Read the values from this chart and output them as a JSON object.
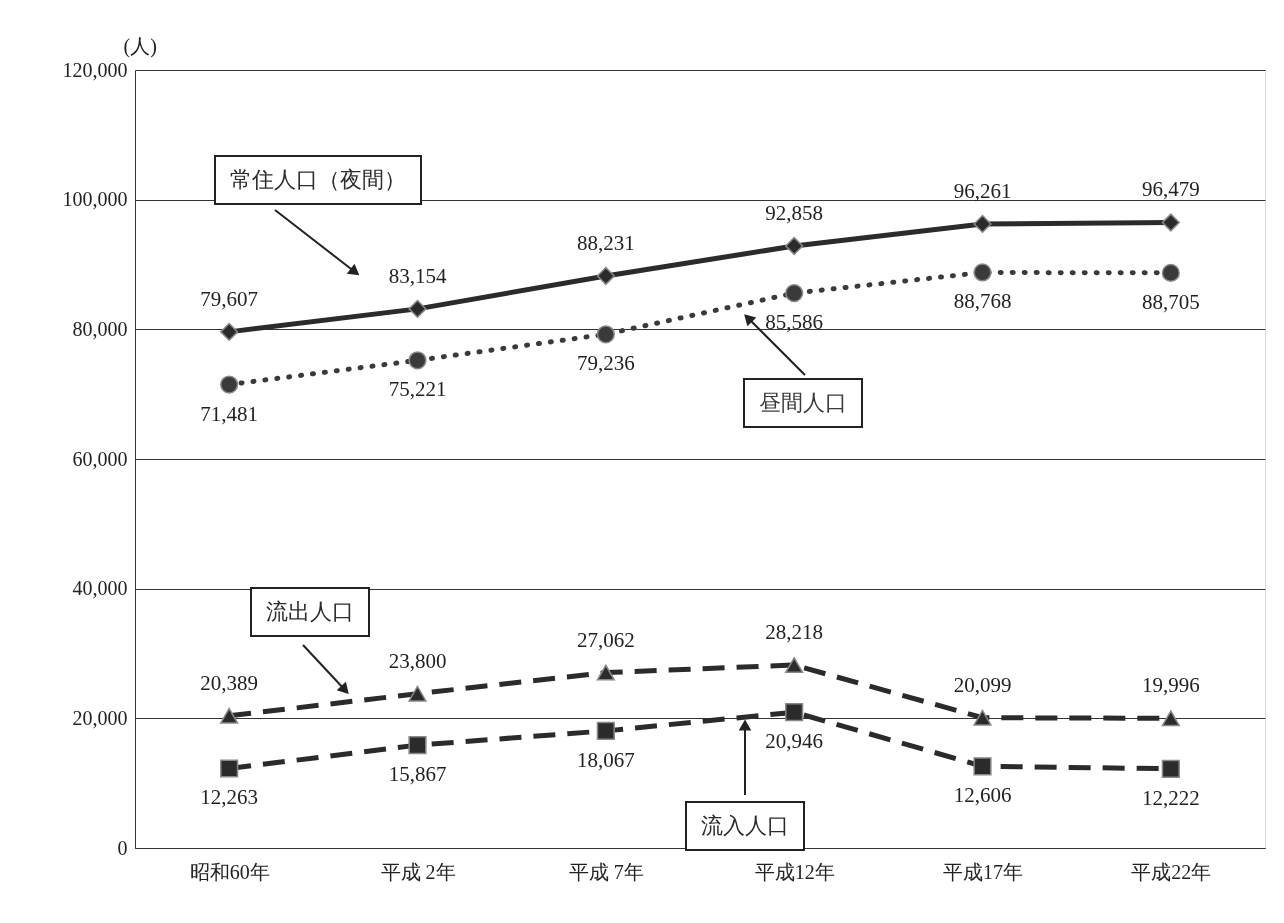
{
  "chart_data": {
    "type": "line",
    "ylabel": "(人)",
    "categories": [
      "昭和60年",
      "平成 2年",
      "平成 7年",
      "平成12年",
      "平成17年",
      "平成22年"
    ],
    "series": [
      {
        "name": "常住人口（夜間）",
        "color": "#2b2b2b",
        "marker": "diamond",
        "line_style": "solid",
        "values": [
          79607,
          83154,
          88231,
          92858,
          96261,
          96479
        ],
        "value_labels": [
          "79,607",
          "83,154",
          "88,231",
          "92,858",
          "96,261",
          "96,479"
        ]
      },
      {
        "name": "昼間人口",
        "color": "#3a3a3a",
        "marker": "circle",
        "line_style": "dotted",
        "values": [
          71481,
          75221,
          79236,
          85586,
          88768,
          88705
        ],
        "value_labels": [
          "71,481",
          "75,221",
          "79,236",
          "85,586",
          "88,768",
          "88,705"
        ]
      },
      {
        "name": "流出人口",
        "color": "#2b2b2b",
        "marker": "triangle",
        "line_style": "dashed",
        "values": [
          20389,
          23800,
          27062,
          28218,
          20099,
          19996
        ],
        "value_labels": [
          "20,389",
          "23,800",
          "27,062",
          "28,218",
          "20,099",
          "19,996"
        ]
      },
      {
        "name": "流入人口",
        "color": "#2b2b2b",
        "marker": "square",
        "line_style": "dashed",
        "values": [
          12263,
          15867,
          18067,
          20946,
          12606,
          12222
        ],
        "value_labels": [
          "12,263",
          "15,867",
          "18,067",
          "20,946",
          "12,606",
          "12,222"
        ]
      }
    ],
    "ylim": [
      0,
      120000
    ],
    "yticks": [
      0,
      {
        "value": 20000,
        "label": "20,000"
      },
      {
        "value": 40000,
        "label": "40,000"
      },
      {
        "value": 60000,
        "label": "60,000"
      },
      {
        "value": 80000,
        "label": "80,000"
      },
      {
        "value": 100000,
        "label": "100,000"
      },
      {
        "value": 120000,
        "label": "120,000"
      }
    ],
    "grid": "y",
    "legend": false
  }
}
